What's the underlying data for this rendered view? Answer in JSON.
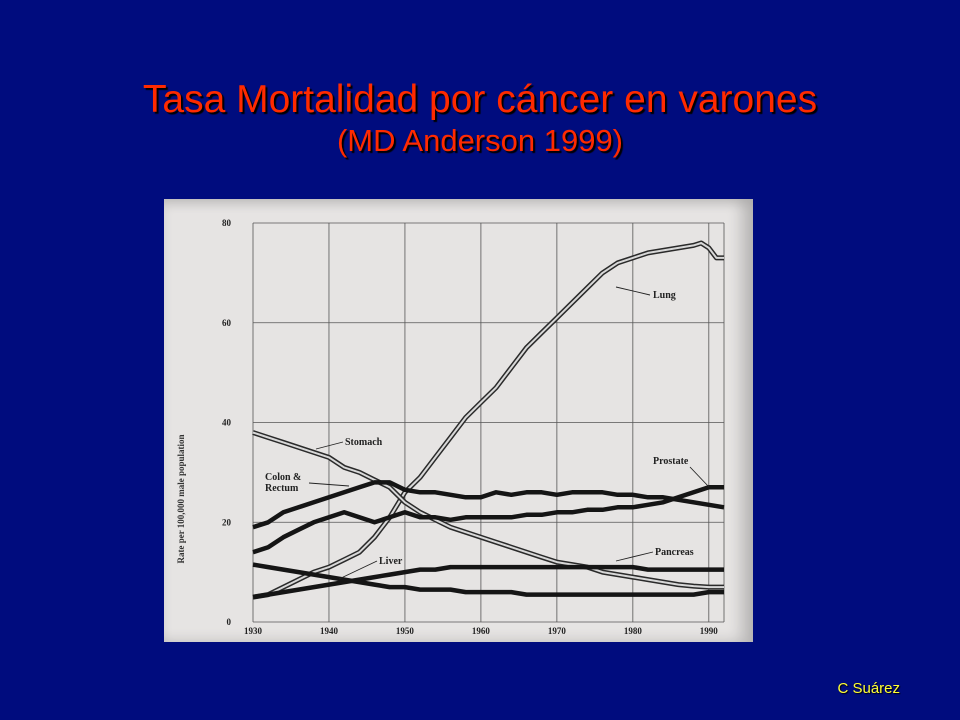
{
  "slide": {
    "title_line1": "Tasa Mortalidad por cáncer en varones",
    "title_line2": "(MD Anderson 1999)",
    "credit": "C Suárez",
    "colors": {
      "background": "#000c7e",
      "title": "#ff2a00",
      "credit": "#ffff33",
      "figure_paper": "#e6e4e3"
    }
  },
  "chart_data": {
    "type": "line",
    "title": "",
    "xlabel": "",
    "ylabel": "Rate per 100,000 male population",
    "xlim": [
      1930,
      1992
    ],
    "ylim": [
      0,
      80
    ],
    "x_ticks": [
      1930,
      1940,
      1950,
      1960,
      1970,
      1980,
      1990
    ],
    "y_ticks": [
      0,
      20,
      40,
      60,
      80
    ],
    "grid": true,
    "series": [
      {
        "name": "Lung",
        "style": "double",
        "points": [
          [
            1930,
            5
          ],
          [
            1932,
            5.5
          ],
          [
            1934,
            7
          ],
          [
            1936,
            8.5
          ],
          [
            1938,
            10
          ],
          [
            1940,
            11
          ],
          [
            1942,
            12.5
          ],
          [
            1944,
            14
          ],
          [
            1946,
            17
          ],
          [
            1948,
            21
          ],
          [
            1950,
            26
          ],
          [
            1952,
            29
          ],
          [
            1954,
            33
          ],
          [
            1956,
            37
          ],
          [
            1958,
            41
          ],
          [
            1960,
            44
          ],
          [
            1962,
            47
          ],
          [
            1964,
            51
          ],
          [
            1966,
            55
          ],
          [
            1968,
            58
          ],
          [
            1970,
            61
          ],
          [
            1972,
            64
          ],
          [
            1974,
            67
          ],
          [
            1976,
            70
          ],
          [
            1978,
            72
          ],
          [
            1980,
            73
          ],
          [
            1982,
            74
          ],
          [
            1984,
            74.5
          ],
          [
            1986,
            75
          ],
          [
            1988,
            75.5
          ],
          [
            1989,
            76
          ],
          [
            1990,
            75
          ],
          [
            1991,
            73
          ],
          [
            1992,
            73
          ]
        ]
      },
      {
        "name": "Stomach",
        "style": "double",
        "points": [
          [
            1930,
            38
          ],
          [
            1932,
            37
          ],
          [
            1934,
            36
          ],
          [
            1936,
            35
          ],
          [
            1938,
            34
          ],
          [
            1940,
            33
          ],
          [
            1942,
            31
          ],
          [
            1944,
            30
          ],
          [
            1946,
            28.5
          ],
          [
            1948,
            27
          ],
          [
            1950,
            24
          ],
          [
            1952,
            22
          ],
          [
            1954,
            20.5
          ],
          [
            1956,
            19
          ],
          [
            1958,
            18
          ],
          [
            1960,
            17
          ],
          [
            1962,
            16
          ],
          [
            1964,
            15
          ],
          [
            1966,
            14
          ],
          [
            1968,
            13
          ],
          [
            1970,
            12
          ],
          [
            1972,
            11.5
          ],
          [
            1974,
            11
          ],
          [
            1976,
            10
          ],
          [
            1978,
            9.5
          ],
          [
            1980,
            9
          ],
          [
            1982,
            8.5
          ],
          [
            1984,
            8
          ],
          [
            1986,
            7.5
          ],
          [
            1988,
            7.2
          ],
          [
            1990,
            7
          ],
          [
            1992,
            7
          ]
        ]
      },
      {
        "name": "Colon & Rectum",
        "style": "thick",
        "points": [
          [
            1930,
            19
          ],
          [
            1932,
            20
          ],
          [
            1934,
            22
          ],
          [
            1936,
            23
          ],
          [
            1938,
            24
          ],
          [
            1940,
            25
          ],
          [
            1942,
            26
          ],
          [
            1944,
            27
          ],
          [
            1946,
            28
          ],
          [
            1948,
            28
          ],
          [
            1950,
            26.5
          ],
          [
            1952,
            26
          ],
          [
            1954,
            26
          ],
          [
            1956,
            25.5
          ],
          [
            1958,
            25
          ],
          [
            1960,
            25
          ],
          [
            1962,
            26
          ],
          [
            1964,
            25.5
          ],
          [
            1966,
            26
          ],
          [
            1968,
            26
          ],
          [
            1970,
            25.5
          ],
          [
            1972,
            26
          ],
          [
            1974,
            26
          ],
          [
            1976,
            26
          ],
          [
            1978,
            25.5
          ],
          [
            1980,
            25.5
          ],
          [
            1982,
            25
          ],
          [
            1984,
            25
          ],
          [
            1986,
            24.5
          ],
          [
            1988,
            24
          ],
          [
            1990,
            23.5
          ],
          [
            1992,
            23
          ]
        ]
      },
      {
        "name": "Prostate",
        "style": "thick",
        "points": [
          [
            1930,
            14
          ],
          [
            1932,
            15
          ],
          [
            1934,
            17
          ],
          [
            1936,
            18.5
          ],
          [
            1938,
            20
          ],
          [
            1940,
            21
          ],
          [
            1942,
            22
          ],
          [
            1944,
            21
          ],
          [
            1946,
            20
          ],
          [
            1948,
            21
          ],
          [
            1950,
            22
          ],
          [
            1952,
            21
          ],
          [
            1954,
            21
          ],
          [
            1956,
            20.5
          ],
          [
            1958,
            21
          ],
          [
            1960,
            21
          ],
          [
            1962,
            21
          ],
          [
            1964,
            21
          ],
          [
            1966,
            21.5
          ],
          [
            1968,
            21.5
          ],
          [
            1970,
            22
          ],
          [
            1972,
            22
          ],
          [
            1974,
            22.5
          ],
          [
            1976,
            22.5
          ],
          [
            1978,
            23
          ],
          [
            1980,
            23
          ],
          [
            1982,
            23.5
          ],
          [
            1984,
            24
          ],
          [
            1986,
            25
          ],
          [
            1988,
            26
          ],
          [
            1990,
            27
          ],
          [
            1992,
            27
          ]
        ]
      },
      {
        "name": "Pancreas",
        "style": "thick",
        "points": [
          [
            1930,
            5
          ],
          [
            1932,
            5.5
          ],
          [
            1934,
            6
          ],
          [
            1936,
            6.5
          ],
          [
            1938,
            7
          ],
          [
            1940,
            7.5
          ],
          [
            1942,
            8
          ],
          [
            1944,
            8.5
          ],
          [
            1946,
            9
          ],
          [
            1948,
            9.5
          ],
          [
            1950,
            10
          ],
          [
            1952,
            10.5
          ],
          [
            1954,
            10.5
          ],
          [
            1956,
            11
          ],
          [
            1958,
            11
          ],
          [
            1960,
            11
          ],
          [
            1962,
            11
          ],
          [
            1964,
            11
          ],
          [
            1966,
            11
          ],
          [
            1968,
            11
          ],
          [
            1970,
            11
          ],
          [
            1972,
            11
          ],
          [
            1974,
            11
          ],
          [
            1976,
            11
          ],
          [
            1978,
            11
          ],
          [
            1980,
            11
          ],
          [
            1982,
            10.5
          ],
          [
            1984,
            10.5
          ],
          [
            1986,
            10.5
          ],
          [
            1988,
            10.5
          ],
          [
            1990,
            10.5
          ],
          [
            1992,
            10.5
          ]
        ]
      },
      {
        "name": "Liver",
        "style": "thick",
        "points": [
          [
            1930,
            11.5
          ],
          [
            1932,
            11
          ],
          [
            1934,
            10.5
          ],
          [
            1936,
            10
          ],
          [
            1938,
            9.5
          ],
          [
            1940,
            9
          ],
          [
            1942,
            8.5
          ],
          [
            1944,
            8
          ],
          [
            1946,
            7.5
          ],
          [
            1948,
            7
          ],
          [
            1950,
            7
          ],
          [
            1952,
            6.5
          ],
          [
            1954,
            6.5
          ],
          [
            1956,
            6.5
          ],
          [
            1958,
            6
          ],
          [
            1960,
            6
          ],
          [
            1962,
            6
          ],
          [
            1964,
            6
          ],
          [
            1966,
            5.5
          ],
          [
            1968,
            5.5
          ],
          [
            1970,
            5.5
          ],
          [
            1972,
            5.5
          ],
          [
            1974,
            5.5
          ],
          [
            1976,
            5.5
          ],
          [
            1978,
            5.5
          ],
          [
            1980,
            5.5
          ],
          [
            1982,
            5.5
          ],
          [
            1984,
            5.5
          ],
          [
            1986,
            5.5
          ],
          [
            1988,
            5.5
          ],
          [
            1990,
            6
          ],
          [
            1992,
            6
          ]
        ]
      }
    ],
    "labels": [
      {
        "text": "Lung",
        "series": "Lung"
      },
      {
        "text": "Stomach",
        "series": "Stomach"
      },
      {
        "text": "Colon &",
        "series": "Colon & Rectum"
      },
      {
        "text": "Rectum",
        "series": "Colon & Rectum"
      },
      {
        "text": "Prostate",
        "series": "Prostate"
      },
      {
        "text": "Pancreas",
        "series": "Pancreas"
      },
      {
        "text": "Liver",
        "series": "Liver"
      }
    ]
  }
}
